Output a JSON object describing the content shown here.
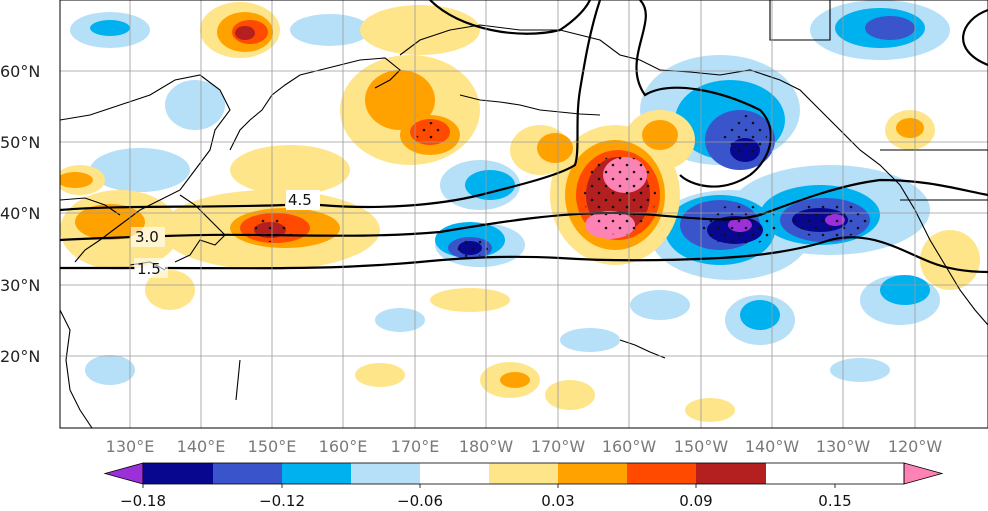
{
  "map": {
    "lat_labels": [
      "60°N",
      "50°N",
      "40°N",
      "30°N",
      "20°N"
    ],
    "lon_labels": [
      "130°E",
      "140°E",
      "150°E",
      "160°E",
      "170°E",
      "180°W",
      "170°W",
      "160°W",
      "150°W",
      "140°W",
      "130°W",
      "120°W"
    ],
    "contour_labels": [
      "4.5",
      "3.0",
      "1.5"
    ]
  },
  "colorbar": {
    "colors": [
      "#9b30d9",
      "#07078f",
      "#3a55cc",
      "#00b1f0",
      "#b6dff8",
      "#ffffff",
      "#ffe58a",
      "#ffa200",
      "#ff4a00",
      "#b41f1f",
      "#ff82b4"
    ],
    "tick_labels": [
      "−0.18",
      "−0.12",
      "−0.06",
      "0.03",
      "0.09",
      "0.15"
    ]
  }
}
